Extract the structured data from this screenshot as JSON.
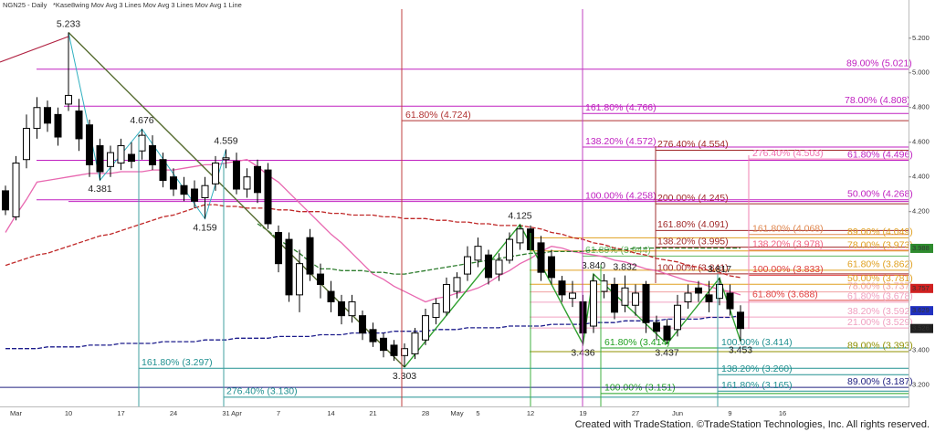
{
  "chart_data": {
    "type": "candlestick",
    "title": "NGN25 - Daily",
    "subtitle": "*Kase8wing   Mov Avg 3 Lines   Mov Avg 3 Lines   Mov Avg 1 Line",
    "footer": "Created with TradeStation. ©TradeStation Technologies, Inc. All rights reserved.",
    "categories": [
      null,
      "Mar",
      null,
      null,
      null,
      null,
      "10",
      null,
      null,
      null,
      null,
      "17",
      null,
      null,
      null,
      null,
      "24",
      null,
      null,
      null,
      null,
      "31",
      "Apr",
      null,
      null,
      null,
      "7",
      null,
      null,
      null,
      null,
      "14",
      null,
      null,
      null,
      "21",
      null,
      null,
      null,
      null,
      "28",
      null,
      null,
      "May",
      null,
      "5",
      null,
      null,
      null,
      null,
      "12",
      null,
      null,
      null,
      null,
      "19",
      null,
      null,
      null,
      null,
      "27",
      null,
      null,
      null,
      "Jun",
      null,
      null,
      null,
      null,
      "9",
      null,
      null,
      null,
      null,
      "16"
    ],
    "open": [
      4.32,
      4.17,
      4.5,
      4.68,
      4.8,
      4.76,
      4.82,
      4.78,
      4.7,
      4.58,
      4.46,
      4.48,
      4.53,
      4.55,
      4.58,
      4.5,
      4.4,
      4.35,
      4.33,
      4.28,
      4.36,
      4.5,
      4.49,
      4.33,
      4.46,
      4.44,
      4.08,
      4.04,
      3.72,
      4.05,
      3.84,
      3.74,
      3.68,
      3.6,
      3.6,
      3.52,
      3.47,
      3.43,
      3.37,
      3.38,
      3.46,
      3.59,
      3.62,
      3.74,
      3.84,
      3.92,
      3.95,
      3.84,
      3.92,
      4.02,
      4.1,
      4.02,
      3.94,
      3.8,
      3.7,
      3.68,
      3.54,
      3.74,
      3.78,
      3.66,
      3.66,
      3.78,
      3.56,
      3.54,
      3.52,
      3.68,
      3.76,
      3.72,
      3.7,
      3.73,
      3.62,
      null,
      null,
      null,
      null
    ],
    "high": [
      4.35,
      4.52,
      4.76,
      4.86,
      4.84,
      4.8,
      5.233,
      4.85,
      4.73,
      4.62,
      4.58,
      4.62,
      4.6,
      4.676,
      4.64,
      4.54,
      4.45,
      4.4,
      4.38,
      4.4,
      4.52,
      4.559,
      4.54,
      4.45,
      4.5,
      4.48,
      4.12,
      4.08,
      3.98,
      4.1,
      3.9,
      3.8,
      3.72,
      3.72,
      3.63,
      3.56,
      3.5,
      3.46,
      3.44,
      3.53,
      3.64,
      3.7,
      3.82,
      3.85,
      4.0,
      4.05,
      3.98,
      3.96,
      4.08,
      4.125,
      4.12,
      4.06,
      3.98,
      3.83,
      3.8,
      3.72,
      3.84,
      3.84,
      3.82,
      3.832,
      3.78,
      3.8,
      3.6,
      3.58,
      3.72,
      3.78,
      3.8,
      3.8,
      3.817,
      3.78,
      3.66,
      null,
      null,
      null,
      null
    ],
    "low": [
      4.18,
      4.15,
      4.45,
      4.62,
      4.66,
      4.58,
      4.78,
      4.55,
      4.4,
      4.381,
      4.4,
      4.44,
      4.45,
      4.5,
      4.44,
      4.34,
      4.29,
      4.26,
      4.22,
      4.159,
      4.32,
      4.45,
      4.3,
      4.28,
      4.25,
      4.1,
      3.85,
      3.68,
      3.62,
      3.8,
      3.7,
      3.62,
      3.55,
      3.56,
      3.46,
      3.42,
      3.36,
      3.34,
      3.303,
      3.35,
      3.43,
      3.55,
      3.6,
      3.7,
      3.8,
      3.88,
      3.78,
      3.8,
      3.9,
      3.98,
      3.95,
      3.8,
      3.78,
      3.68,
      3.65,
      3.436,
      3.5,
      3.7,
      3.58,
      3.62,
      3.6,
      3.5,
      3.46,
      3.437,
      3.48,
      3.64,
      3.68,
      3.62,
      3.66,
      3.6,
      3.453,
      null,
      null,
      null,
      null
    ],
    "close": [
      4.21,
      4.48,
      4.68,
      4.8,
      4.71,
      4.63,
      4.87,
      4.62,
      4.47,
      4.43,
      4.54,
      4.58,
      4.49,
      4.64,
      4.47,
      4.38,
      4.33,
      4.3,
      4.26,
      4.35,
      4.48,
      4.51,
      4.33,
      4.4,
      4.31,
      4.13,
      3.9,
      3.72,
      3.9,
      3.84,
      3.78,
      3.68,
      3.6,
      3.68,
      3.5,
      3.45,
      3.4,
      3.37,
      3.41,
      3.5,
      3.6,
      3.67,
      3.78,
      3.82,
      3.94,
      4.0,
      3.82,
      3.92,
      4.04,
      4.1,
      3.98,
      3.85,
      3.82,
      3.72,
      3.73,
      3.5,
      3.8,
      3.8,
      3.62,
      3.76,
      3.73,
      3.56,
      3.51,
      3.46,
      3.66,
      3.73,
      3.73,
      3.68,
      3.78,
      3.64,
      3.526,
      null,
      null,
      null,
      null
    ],
    "up_color": "#ffffff",
    "down_color": "#000000",
    "moving_averages": [
      {
        "color": "#e868b0",
        "dashed": false,
        "values": [
          4.08,
          4.18,
          4.27,
          4.37,
          4.38,
          4.39,
          4.4,
          4.41,
          4.42,
          4.42,
          4.42,
          4.43,
          4.43,
          4.43,
          4.44,
          4.44,
          4.44,
          4.45,
          4.46,
          4.47,
          4.47,
          4.48,
          4.49,
          4.5,
          4.46,
          4.41,
          4.37,
          4.31,
          4.25,
          4.19,
          4.13,
          4.07,
          4.02,
          3.96,
          3.9,
          3.84,
          3.81,
          3.77,
          3.74,
          3.71,
          3.68,
          3.7,
          3.71,
          3.73,
          3.74,
          3.76,
          3.79,
          3.83,
          3.86,
          3.9,
          3.93,
          3.97,
          4.0,
          3.99,
          3.97,
          3.96,
          3.95,
          3.94,
          3.92,
          3.91,
          3.89,
          3.87,
          3.86,
          3.84,
          3.82,
          3.8,
          3.79,
          3.77,
          3.75,
          3.74,
          3.72,
          null,
          null,
          null,
          null
        ]
      },
      {
        "color": "#c02828",
        "dashed": true,
        "values": [
          3.89,
          3.91,
          3.93,
          3.95,
          3.96,
          3.98,
          4.0,
          4.02,
          4.04,
          4.06,
          4.07,
          4.09,
          4.11,
          4.13,
          4.15,
          4.17,
          4.18,
          4.2,
          4.22,
          4.24,
          4.24,
          4.23,
          4.23,
          4.22,
          4.22,
          4.22,
          4.21,
          4.21,
          4.2,
          4.2,
          4.2,
          4.19,
          4.19,
          4.18,
          4.18,
          4.18,
          4.17,
          4.17,
          4.16,
          4.16,
          4.16,
          4.15,
          4.15,
          4.14,
          4.14,
          4.13,
          4.13,
          4.12,
          4.12,
          4.12,
          4.11,
          4.1,
          4.08,
          4.07,
          4.05,
          4.04,
          4.02,
          4.01,
          3.99,
          3.98,
          3.96,
          3.95,
          3.93,
          3.92,
          3.91,
          3.89,
          3.88,
          3.86,
          3.85,
          3.83,
          3.82,
          null,
          null,
          null,
          null
        ]
      },
      {
        "color": "#2e7d2e",
        "dashed": true,
        "values": [
          null,
          null,
          null,
          null,
          null,
          null,
          null,
          null,
          null,
          null,
          null,
          null,
          null,
          null,
          null,
          null,
          null,
          null,
          null,
          null,
          null,
          null,
          null,
          null,
          4.13,
          4.09,
          4.04,
          4.0,
          3.96,
          3.91,
          3.87,
          3.87,
          3.86,
          3.86,
          3.86,
          3.85,
          3.85,
          3.84,
          3.84,
          3.85,
          3.86,
          3.87,
          3.88,
          3.89,
          3.9,
          3.91,
          3.92,
          3.93,
          3.94,
          3.95,
          3.96,
          3.96,
          3.97,
          3.97,
          3.97,
          3.97,
          3.98,
          3.98,
          3.98,
          3.98,
          3.99,
          3.99,
          3.99,
          3.99,
          3.99,
          3.99,
          3.99,
          3.99,
          3.99,
          3.99,
          3.99,
          null,
          null,
          null,
          null
        ]
      },
      {
        "color": "#1c1c8c",
        "dashed": true,
        "values": [
          3.41,
          3.41,
          3.41,
          3.41,
          3.42,
          3.42,
          3.42,
          3.42,
          3.43,
          3.43,
          3.43,
          3.44,
          3.44,
          3.44,
          3.44,
          3.45,
          3.45,
          3.45,
          3.45,
          3.46,
          3.46,
          3.46,
          3.47,
          3.47,
          3.47,
          3.47,
          3.48,
          3.48,
          3.48,
          3.48,
          3.49,
          3.49,
          3.49,
          3.5,
          3.5,
          3.5,
          3.5,
          3.51,
          3.51,
          3.51,
          3.51,
          3.52,
          3.52,
          3.52,
          3.53,
          3.53,
          3.53,
          3.53,
          3.54,
          3.54,
          3.54,
          3.54,
          3.55,
          3.55,
          3.55,
          3.55,
          3.56,
          3.56,
          3.56,
          3.57,
          3.57,
          3.57,
          3.57,
          3.58,
          3.58,
          3.58,
          3.58,
          3.59,
          3.59,
          3.59,
          3.6,
          null,
          null,
          null,
          null
        ]
      }
    ],
    "pivots": [
      5.233,
      4.381,
      4.676,
      4.159,
      4.559,
      3.303,
      4.125,
      3.436,
      {
        "value": 3.84,
        "label": "3.840"
      },
      3.832,
      3.437,
      3.817,
      3.453
    ],
    "levels": [
      {
        "label": "89.00% (5.021)",
        "value": 5.021,
        "color": "#c020c0"
      },
      {
        "label": "78.00% (4.808)",
        "value": 4.808,
        "color": "#c020c0"
      },
      {
        "label": "161.80% (4.766)",
        "value": 4.766,
        "color": "#c020c0"
      },
      {
        "label": "61.80% (4.724)",
        "value": 4.724,
        "color": "#b03030"
      },
      {
        "label": "138.20% (4.572)",
        "value": 4.572,
        "color": "#c020c0"
      },
      {
        "label": "276.40% (4.554)",
        "value": 4.554,
        "color": "#a02828"
      },
      {
        "label": "276.40% (4.503)",
        "value": 4.503,
        "color": "#f070b0"
      },
      {
        "label": "61.80% (4.496)",
        "value": 4.496,
        "color": "#c020c0"
      },
      {
        "label": "100.00% (4.258)",
        "value": 4.258,
        "color": "#c020c0"
      },
      {
        "label": "200.00% (4.245)",
        "value": 4.245,
        "color": "#a02828"
      },
      {
        "label": "50.00% (4.268)",
        "value": 4.268,
        "color": "#c020c0"
      },
      {
        "label": "161.80% (4.091)",
        "value": 4.091,
        "color": "#a02828"
      },
      {
        "label": "161.80% (4.068)",
        "value": 4.068,
        "color": "#e08850"
      },
      {
        "label": "89.00% (4.049)",
        "value": 4.049,
        "color": "#e0a020"
      },
      {
        "label": "61.80% (3.944)",
        "value": 3.944,
        "color": "#60b860"
      },
      {
        "label": "138.20% (3.995)",
        "value": 3.995,
        "color": "#a02828"
      },
      {
        "label": "138.20% (3.978)",
        "value": 3.978,
        "color": "#f06080"
      },
      {
        "label": "78.00% (3.973)",
        "value": 3.973,
        "color": "#e0a020"
      },
      {
        "label": "61.80% (3.862)",
        "value": 3.862,
        "color": "#e0a020"
      },
      {
        "label": "100.00% (3.841)",
        "value": 3.841,
        "color": "#a02828"
      },
      {
        "label": "100.00% (3.833)",
        "value": 3.833,
        "color": "#e04040"
      },
      {
        "label": "50.00% (3.781)",
        "value": 3.781,
        "color": "#e0a020"
      },
      {
        "label": "78.00% (3.737)",
        "value": 3.737,
        "color": "#f0a0a0"
      },
      {
        "label": "61.80% (3.688)",
        "value": 3.688,
        "color": "#e04040"
      },
      {
        "label": "61.80% (3.678)",
        "value": 3.678,
        "color": "#f0a0c0"
      },
      {
        "label": "38.20% (3.592)",
        "value": 3.592,
        "color": "#f0a0c0"
      },
      {
        "label": "21.00% (3.529)",
        "value": 3.529,
        "color": "#f0a0c0"
      },
      {
        "label": "61.80% (3.414)",
        "value": 3.414,
        "color": "#20a020"
      },
      {
        "label": "100.00% (3.414)",
        "value": 3.414,
        "color": "#209090"
      },
      {
        "label": "89.00% (3.393)",
        "value": 3.393,
        "color": "#909000"
      },
      {
        "label": "161.80% (3.297)",
        "value": 3.297,
        "color": "#209090"
      },
      {
        "label": "138.20% (3.260)",
        "value": 3.26,
        "color": "#209090"
      },
      {
        "label": "100.00% (3.151)",
        "value": 3.151,
        "color": "#20a020"
      },
      {
        "label": "89.00% (3.187)",
        "value": 3.187,
        "color": "#202080"
      },
      {
        "label": "161.80% (3.165)",
        "value": 3.165,
        "color": "#209090"
      },
      {
        "label": "276.40% (3.130)",
        "value": 3.13,
        "color": "#209090"
      }
    ],
    "price_markers": [
      {
        "value": 3.988,
        "color": "#2e8b2e"
      },
      {
        "value": 3.757,
        "color": "#d02020"
      },
      {
        "value": 3.629,
        "color": "#2030c0"
      },
      {
        "value": 3.526,
        "color": "#202020"
      }
    ],
    "ylim": [
      3.04,
      5.42
    ],
    "yticks": [
      {
        "value": 3.2,
        "label": "3.200"
      },
      {
        "value": 3.4,
        "label": "3.400"
      },
      {
        "value": 4.2,
        "label": "4.200"
      },
      {
        "value": 4.4,
        "label": "4.400"
      },
      {
        "value": 4.6,
        "label": "4.600"
      },
      {
        "value": 4.8,
        "label": "4.800"
      },
      {
        "value": 5.0,
        "label": "5.000"
      },
      {
        "value": 5.2,
        "label": "5.200"
      }
    ]
  }
}
